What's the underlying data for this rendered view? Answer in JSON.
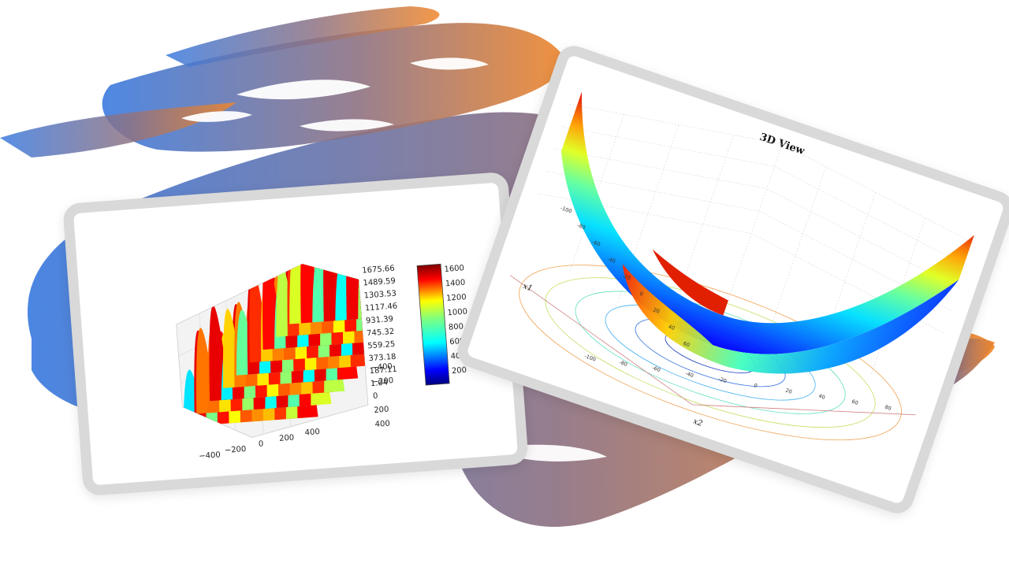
{
  "slide": {
    "colors": {
      "brush_left": "#3b7be0",
      "brush_mid": "#8e7282",
      "brush_right": "#f0862a",
      "card_frame": "#d9d9d9"
    }
  },
  "chart_data": [
    {
      "type": "surface3d",
      "title": "",
      "colormap": "jet",
      "x_ticks": [
        "−400",
        "−200",
        "0",
        "200",
        "400"
      ],
      "y_ticks": [
        "−400",
        "−200",
        "0",
        "200",
        "400"
      ],
      "z_ticks": [
        "1675.66",
        "1489.59",
        "1303.53",
        "1117.46",
        "931.39",
        "745.32",
        "559.25",
        "373.18",
        "187.11",
        "1.04"
      ],
      "zlim": [
        1.04,
        1675.66
      ],
      "colorbar_ticks": [
        "1600",
        "1400",
        "1200",
        "1000",
        "800",
        "600",
        "400",
        "200"
      ],
      "colorbar_range": [
        0,
        1675.66
      ]
    },
    {
      "type": "surface3d",
      "title": "3D View",
      "colormap": "jet",
      "xlabel": "x1",
      "ylabel": "x2",
      "x_ticks": [
        "-100",
        "-80",
        "-60",
        "-40",
        "-20",
        "0",
        "20",
        "40",
        "60"
      ],
      "y_ticks": [
        "-100",
        "-80",
        "-60",
        "-40",
        "-20",
        "0",
        "20",
        "40",
        "60",
        "80"
      ],
      "contour_projection": true,
      "grid": true
    }
  ]
}
